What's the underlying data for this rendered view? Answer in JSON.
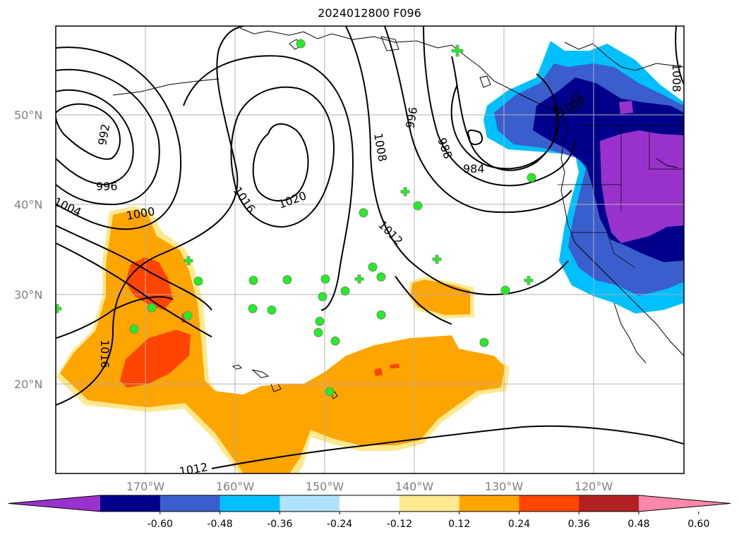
{
  "title": "2024012800 F096",
  "map": {
    "lat_labels": [
      "50°N",
      "40°N",
      "30°N",
      "20°N"
    ],
    "lon_labels": [
      "170°W",
      "160°W",
      "150°W",
      "140°W",
      "130°W",
      "120°W"
    ],
    "grid": true,
    "contour_labels": [
      "992",
      "996",
      "1000",
      "1004",
      "1016",
      "1020",
      "1008",
      "996",
      "988",
      "984",
      "1012",
      "1016",
      "1012",
      "1008",
      "1000"
    ],
    "field_colors": {
      "orange": "#ffa500",
      "red_orange": "#ff4500",
      "pale_yellow": "#ffe98f",
      "light_blue": "#00bfff",
      "royal_blue": "#3a5fcd",
      "navy": "#00008b",
      "purple": "#9932cc"
    },
    "station_marker_color": "#22ee22"
  },
  "colorbar": {
    "ticks": [
      "-0.60",
      "-0.48",
      "-0.36",
      "-0.24",
      "-0.12",
      "0.12",
      "0.24",
      "0.36",
      "0.48",
      "0.60"
    ],
    "colors": [
      "#9932cc",
      "#00008b",
      "#3a5fcd",
      "#00bfff",
      "#b0e2ff",
      "#ffffff",
      "#ffe98f",
      "#ffa500",
      "#ff4500",
      "#b22222",
      "#ff88aa"
    ]
  }
}
